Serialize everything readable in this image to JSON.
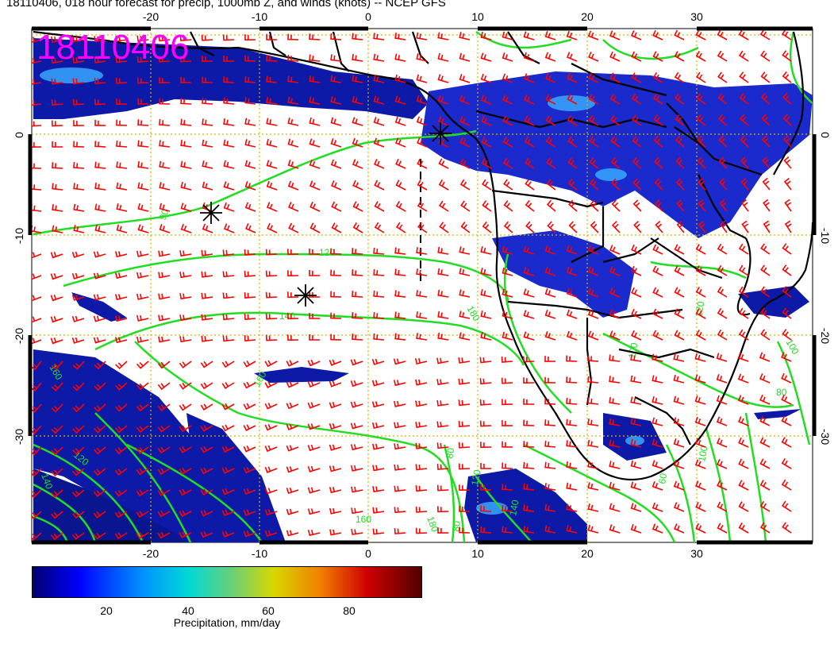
{
  "title": "18110406, 018 hour forecast for precip, 1000mb Z, and winds (knots) -- NCEP GFS",
  "stamp": "18110406",
  "axes": {
    "x_ticks": [
      "-20",
      "-10",
      "0",
      "10",
      "20",
      "30"
    ],
    "y_ticks": [
      "0",
      "-10",
      "-20",
      "-30"
    ]
  },
  "colorbar": {
    "title": "Precipitation, mm/day",
    "ticks": [
      "20",
      "40",
      "60",
      "80"
    ],
    "range": [
      0,
      100
    ],
    "colors": [
      "#00008b",
      "#0000ff",
      "#0080ff",
      "#00d0d0",
      "#60d060",
      "#c8c800",
      "#e08000",
      "#d00000",
      "#600000"
    ]
  },
  "contour_labels": [
    "90",
    "120",
    "140",
    "160",
    "180",
    "120",
    "140",
    "160",
    "180",
    "80",
    "80",
    "120",
    "140",
    "160",
    "100",
    "120",
    "100",
    "60",
    "100",
    "80"
  ],
  "colors": {
    "contours": "#22dd22",
    "wind_barbs": "#ff0000",
    "coastlines": "#000000",
    "grid": "#d4b400",
    "stamp": "#ff00ff"
  }
}
